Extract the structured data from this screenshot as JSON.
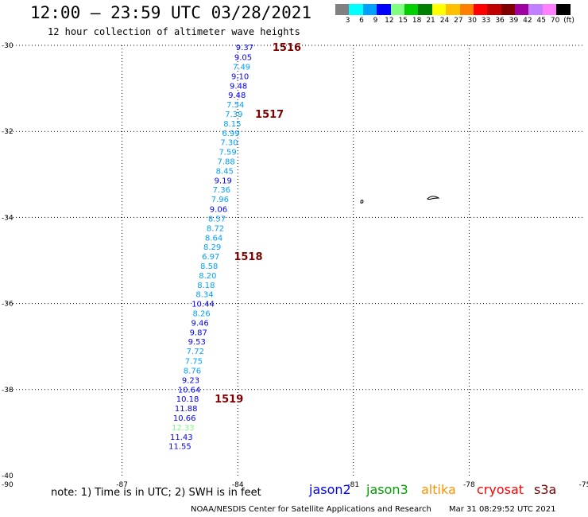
{
  "header": {
    "title": "12:00 – 23:59 UTC 03/28/2021",
    "subtitle": "12 hour collection of altimeter wave heights"
  },
  "legend": {
    "colors": [
      "#808080",
      "#00ffff",
      "#00a0ff",
      "#0000ff",
      "#80ff80",
      "#00d000",
      "#008000",
      "#ffff00",
      "#ffc000",
      "#ff8000",
      "#ff0000",
      "#c00000",
      "#800000",
      "#a000a0",
      "#c080ff",
      "#ff80ff",
      "#000000"
    ],
    "labels": [
      "3",
      "6",
      "9",
      "12",
      "15",
      "18",
      "21",
      "24",
      "27",
      "30",
      "33",
      "36",
      "39",
      "42",
      "45",
      "70",
      "(ft)"
    ]
  },
  "map": {
    "lon_range": [
      -90,
      -75
    ],
    "lat_range": [
      -40,
      -30
    ],
    "x_ticks": [
      {
        "value": -87,
        "label": "-87"
      },
      {
        "value": -84,
        "label": "-84"
      },
      {
        "value": -81,
        "label": "-81"
      },
      {
        "value": -78,
        "label": "-78"
      },
      {
        "value": -75,
        "label": "-75"
      }
    ],
    "y_ticks": [
      {
        "value": -30,
        "label": "-30"
      },
      {
        "value": -32,
        "label": "-32"
      },
      {
        "value": -34,
        "label": "-34"
      },
      {
        "value": -36,
        "label": "-36"
      },
      {
        "value": -38,
        "label": "-38"
      },
      {
        "value": -40,
        "label": "-40"
      }
    ],
    "x_corner_label": "-90",
    "track_points": [
      {
        "lon": -83.82,
        "lat": -30.04,
        "label": "9.37",
        "color": "#0000ff"
      },
      {
        "lon": -83.86,
        "lat": -30.27,
        "label": "9.05",
        "color": "#0000ff"
      },
      {
        "lon": -83.9,
        "lat": -30.49,
        "label": "7.49",
        "color": "#00a0ff"
      },
      {
        "lon": -83.94,
        "lat": -30.71,
        "label": "9.10",
        "color": "#0000ff"
      },
      {
        "lon": -83.98,
        "lat": -30.93,
        "label": "9.48",
        "color": "#0000ff"
      },
      {
        "lon": -84.02,
        "lat": -31.15,
        "label": "9.48",
        "color": "#0000ff"
      },
      {
        "lon": -84.06,
        "lat": -31.37,
        "label": "7.54",
        "color": "#00a0ff"
      },
      {
        "lon": -84.1,
        "lat": -31.59,
        "label": "7.39",
        "color": "#00a0ff"
      },
      {
        "lon": -84.14,
        "lat": -31.81,
        "label": "8.15",
        "color": "#00a0ff"
      },
      {
        "lon": -84.18,
        "lat": -32.03,
        "label": "6.99",
        "color": "#00a0ff"
      },
      {
        "lon": -84.22,
        "lat": -32.25,
        "label": "7.30",
        "color": "#00a0ff"
      },
      {
        "lon": -84.26,
        "lat": -32.47,
        "label": "7.59",
        "color": "#00a0ff"
      },
      {
        "lon": -84.3,
        "lat": -32.69,
        "label": "7.88",
        "color": "#00a0ff"
      },
      {
        "lon": -84.34,
        "lat": -32.91,
        "label": "8.45",
        "color": "#00a0ff"
      },
      {
        "lon": -84.38,
        "lat": -33.13,
        "label": "9.19",
        "color": "#0000ff"
      },
      {
        "lon": -84.42,
        "lat": -33.35,
        "label": "7.36",
        "color": "#00a0ff"
      },
      {
        "lon": -84.46,
        "lat": -33.57,
        "label": "7.96",
        "color": "#00a0ff"
      },
      {
        "lon": -84.5,
        "lat": -33.8,
        "label": "9.06",
        "color": "#0000ff"
      },
      {
        "lon": -84.54,
        "lat": -34.02,
        "label": "8.57",
        "color": "#00a0ff"
      },
      {
        "lon": -84.58,
        "lat": -34.24,
        "label": "8.72",
        "color": "#00a0ff"
      },
      {
        "lon": -84.62,
        "lat": -34.46,
        "label": "8.64",
        "color": "#00a0ff"
      },
      {
        "lon": -84.66,
        "lat": -34.68,
        "label": "8.29",
        "color": "#00a0ff"
      },
      {
        "lon": -84.7,
        "lat": -34.9,
        "label": "6.97",
        "color": "#00a0ff"
      },
      {
        "lon": -84.74,
        "lat": -35.12,
        "label": "8.58",
        "color": "#00a0ff"
      },
      {
        "lon": -84.78,
        "lat": -35.34,
        "label": "8.20",
        "color": "#00a0ff"
      },
      {
        "lon": -84.82,
        "lat": -35.56,
        "label": "8.18",
        "color": "#00a0ff"
      },
      {
        "lon": -84.86,
        "lat": -35.78,
        "label": "8.34",
        "color": "#00a0ff"
      },
      {
        "lon": -84.9,
        "lat": -36.0,
        "label": "10.44",
        "color": "#0000ff"
      },
      {
        "lon": -84.94,
        "lat": -36.22,
        "label": "8.26",
        "color": "#00a0ff"
      },
      {
        "lon": -84.98,
        "lat": -36.44,
        "label": "9.46",
        "color": "#0000ff"
      },
      {
        "lon": -85.02,
        "lat": -36.66,
        "label": "9.87",
        "color": "#0000ff"
      },
      {
        "lon": -85.06,
        "lat": -36.88,
        "label": "9.53",
        "color": "#0000ff"
      },
      {
        "lon": -85.1,
        "lat": -37.1,
        "label": "7.72",
        "color": "#00a0ff"
      },
      {
        "lon": -85.14,
        "lat": -37.33,
        "label": "7.75",
        "color": "#00a0ff"
      },
      {
        "lon": -85.18,
        "lat": -37.55,
        "label": "8.76",
        "color": "#00a0ff"
      },
      {
        "lon": -85.22,
        "lat": -37.77,
        "label": "9.23",
        "color": "#0000ff"
      },
      {
        "lon": -85.26,
        "lat": -37.99,
        "label": "10.64",
        "color": "#0000ff"
      },
      {
        "lon": -85.3,
        "lat": -38.21,
        "label": "10.18",
        "color": "#0000ff"
      },
      {
        "lon": -85.34,
        "lat": -38.43,
        "label": "11.88",
        "color": "#0000ff"
      },
      {
        "lon": -85.38,
        "lat": -38.65,
        "label": "10.66",
        "color": "#0000ff"
      },
      {
        "lon": -85.42,
        "lat": -38.87,
        "label": "12.33",
        "color": "#80ff80"
      },
      {
        "lon": -85.46,
        "lat": -39.09,
        "label": "11.43",
        "color": "#0000ff"
      },
      {
        "lon": -85.5,
        "lat": -39.31,
        "label": "11.55",
        "color": "#0000ff"
      }
    ],
    "time_labels": [
      {
        "lon": -83.1,
        "lat": -30.04,
        "label": "1516",
        "color": "#800000"
      },
      {
        "lon": -83.55,
        "lat": -31.59,
        "label": "1517",
        "color": "#800000"
      },
      {
        "lon": -84.1,
        "lat": -34.9,
        "label": "1518",
        "color": "#800000"
      },
      {
        "lon": -84.6,
        "lat": -38.21,
        "label": "1519",
        "color": "#800000"
      }
    ]
  },
  "footer": {
    "note": "note: 1) Time is in UTC; 2) SWH is in feet",
    "satellites": [
      {
        "name": "jason2",
        "color": "#0000ff"
      },
      {
        "name": "jason3",
        "color": "#00a000"
      },
      {
        "name": "altika",
        "color": "#ff9000"
      },
      {
        "name": "cryosat",
        "color": "#ff0000"
      },
      {
        "name": "s3a",
        "color": "#800000"
      }
    ],
    "credit": "NOAA/NESDIS Center for Satellite Applications and Research",
    "timestamp": "Mar 31 08:29:52 UTC 2021"
  }
}
